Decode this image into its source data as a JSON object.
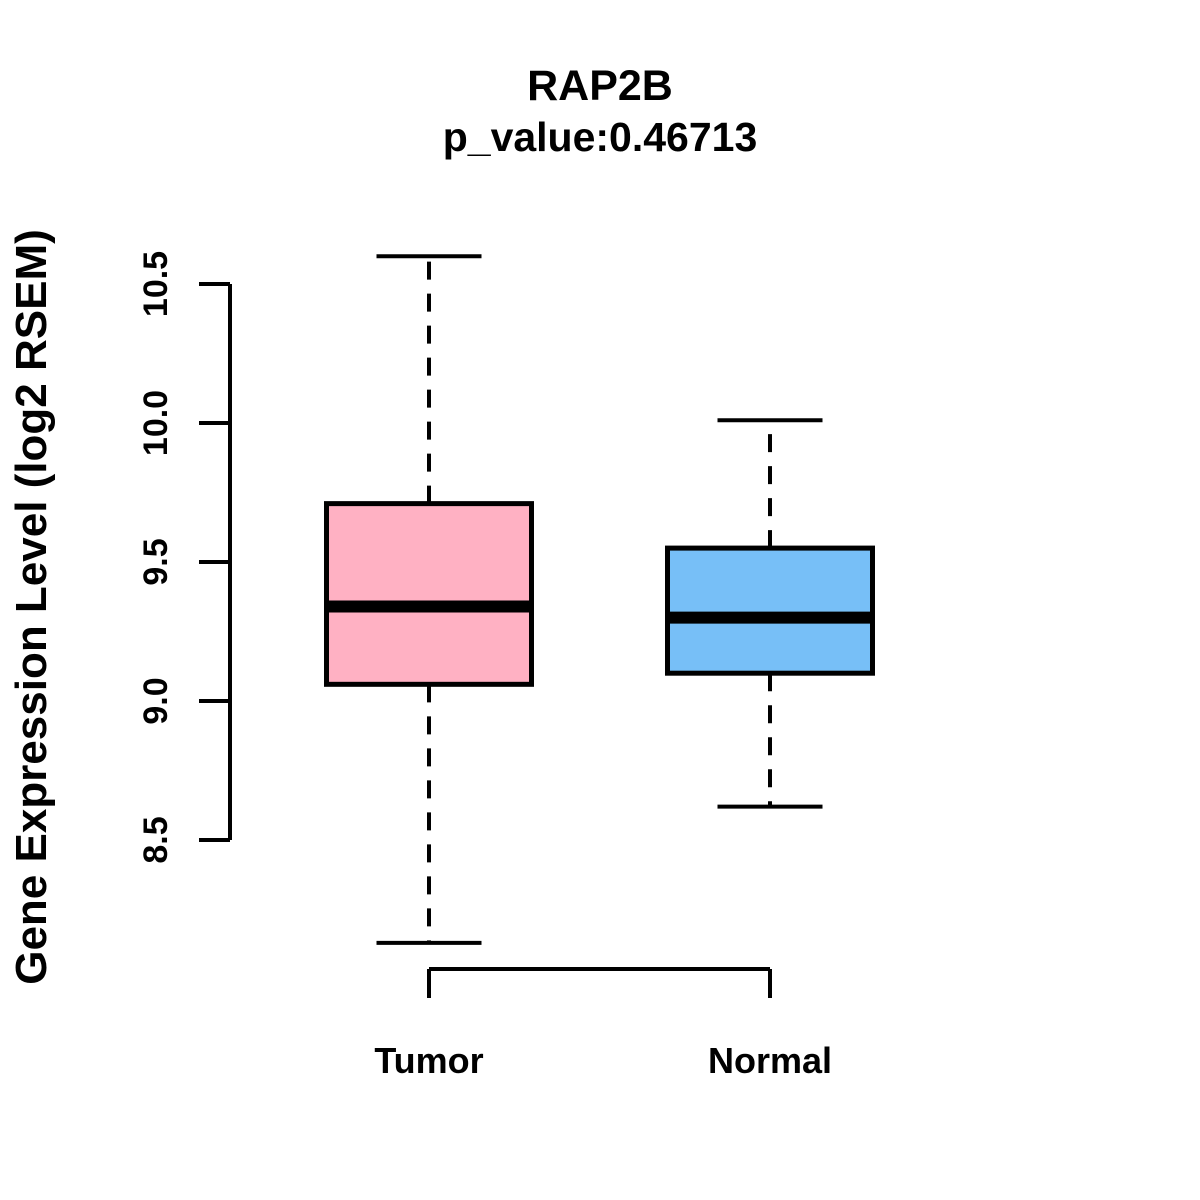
{
  "chart_data": {
    "type": "boxplot",
    "title": "RAP2B",
    "subtitle": "p_value:0.46713",
    "gene": "RAP2B",
    "p_value": 0.46713,
    "ylabel": "Gene Expression Level (log2 RSEM)",
    "ylim": [
      8.5,
      10.5
    ],
    "yticks": [
      8.5,
      9.0,
      9.5,
      10.0,
      10.5
    ],
    "categories": [
      "Tumor",
      "Normal"
    ],
    "groups": [
      {
        "name": "Tumor",
        "box_color": "#FFB1C3",
        "lower_whisker": 8.13,
        "q1": 9.06,
        "median": 9.34,
        "q3": 9.71,
        "upper_whisker": 10.6
      },
      {
        "name": "Normal",
        "box_color": "#77BFF7",
        "lower_whisker": 8.62,
        "q1": 9.1,
        "median": 9.3,
        "q3": 9.55,
        "upper_whisker": 10.01
      }
    ],
    "line_color": "#000000",
    "background_color": "#FFFFFF",
    "legend": "none",
    "grid": false
  }
}
